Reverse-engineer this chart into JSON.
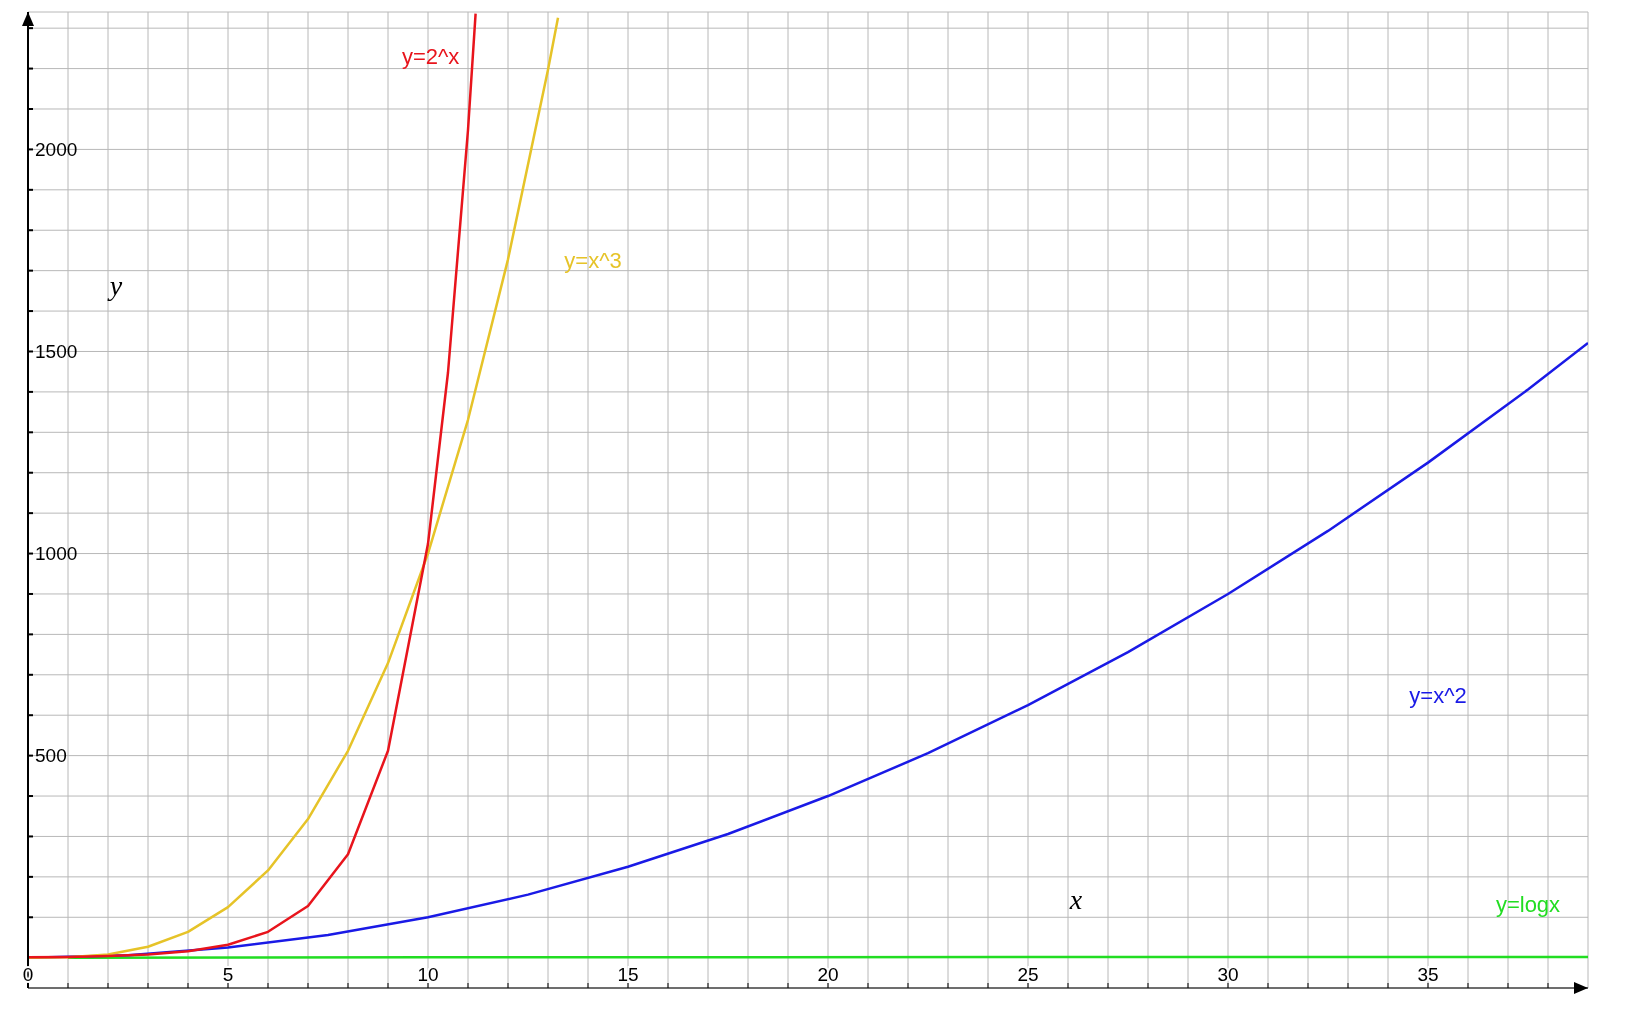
{
  "chart_data": {
    "type": "line",
    "xlabel": "x",
    "ylabel": "y",
    "xlim": [
      0,
      39
    ],
    "ylim": [
      -75,
      2340
    ],
    "xticks": [
      0,
      {
        "value": 1,
        "label": null
      },
      {
        "value": 2,
        "label": null
      },
      {
        "value": 3,
        "label": null
      },
      {
        "value": 4,
        "label": null
      },
      5,
      {
        "value": 6,
        "label": null
      },
      {
        "value": 7,
        "label": null
      },
      {
        "value": 8,
        "label": null
      },
      {
        "value": 9,
        "label": null
      },
      10,
      {
        "value": 11,
        "label": null
      },
      {
        "value": 12,
        "label": null
      },
      {
        "value": 13,
        "label": null
      },
      {
        "value": 14,
        "label": null
      },
      15,
      {
        "value": 16,
        "label": null
      },
      {
        "value": 17,
        "label": null
      },
      {
        "value": 18,
        "label": null
      },
      {
        "value": 19,
        "label": null
      },
      20,
      {
        "value": 21,
        "label": null
      },
      {
        "value": 22,
        "label": null
      },
      {
        "value": 23,
        "label": null
      },
      {
        "value": 24,
        "label": null
      },
      25,
      {
        "value": 26,
        "label": null
      },
      {
        "value": 27,
        "label": null
      },
      {
        "value": 28,
        "label": null
      },
      {
        "value": 29,
        "label": null
      },
      30,
      {
        "value": 31,
        "label": null
      },
      {
        "value": 32,
        "label": null
      },
      {
        "value": 33,
        "label": null
      },
      {
        "value": 34,
        "label": null
      },
      35,
      {
        "value": 36,
        "label": null
      },
      {
        "value": 37,
        "label": null
      },
      {
        "value": 38,
        "label": null
      }
    ],
    "yticks": [
      {
        "value": 100,
        "label": null
      },
      {
        "value": 200,
        "label": null
      },
      {
        "value": 300,
        "label": null
      },
      {
        "value": 400,
        "label": null
      },
      500,
      {
        "value": 600,
        "label": null
      },
      {
        "value": 700,
        "label": null
      },
      {
        "value": 800,
        "label": null
      },
      {
        "value": 900,
        "label": null
      },
      1000,
      {
        "value": 1100,
        "label": null
      },
      {
        "value": 1200,
        "label": null
      },
      {
        "value": 1300,
        "label": null
      },
      {
        "value": 1400,
        "label": null
      },
      1500,
      {
        "value": 1600,
        "label": null
      },
      {
        "value": 1700,
        "label": null
      },
      {
        "value": 1800,
        "label": null
      },
      {
        "value": 1900,
        "label": null
      },
      2000,
      {
        "value": 2100,
        "label": null
      },
      {
        "value": 2200,
        "label": null
      },
      {
        "value": 2300,
        "label": null
      }
    ],
    "grid": true,
    "marker": "none",
    "line_style": "solid",
    "series": [
      {
        "name": "y=2^x",
        "color": "#e8141c",
        "x": [
          0,
          1,
          2,
          3,
          4,
          5,
          6,
          7,
          8,
          9,
          10,
          10.5,
          11,
          11.19
        ],
        "values": [
          1,
          2,
          4,
          8,
          16,
          32,
          64,
          128,
          256,
          512,
          1024,
          1448,
          2048,
          2336
        ]
      },
      {
        "name": "y=x^3",
        "color": "#e6c328",
        "x": [
          0,
          1,
          2,
          3,
          4,
          5,
          6,
          7,
          8,
          9,
          10,
          11,
          12,
          13,
          13.25
        ],
        "values": [
          0,
          1,
          8,
          27,
          64,
          125,
          216,
          343,
          512,
          729,
          1000,
          1331,
          1728,
          2197,
          2326
        ]
      },
      {
        "name": "y=x^2",
        "color": "#1a1ae6",
        "x": [
          0,
          2.5,
          5,
          7.5,
          10,
          12.5,
          15,
          17.5,
          20,
          22.5,
          25,
          27.5,
          30,
          32.5,
          35,
          37.5,
          39
        ],
        "values": [
          0,
          6,
          25,
          56,
          100,
          156,
          225,
          306,
          400,
          506,
          625,
          756,
          900,
          1056,
          1225,
          1406,
          1521
        ]
      },
      {
        "name": "y=logx",
        "color": "#22dd22",
        "x": [
          1,
          10,
          39
        ],
        "values": [
          0,
          1,
          2
        ]
      }
    ]
  }
}
